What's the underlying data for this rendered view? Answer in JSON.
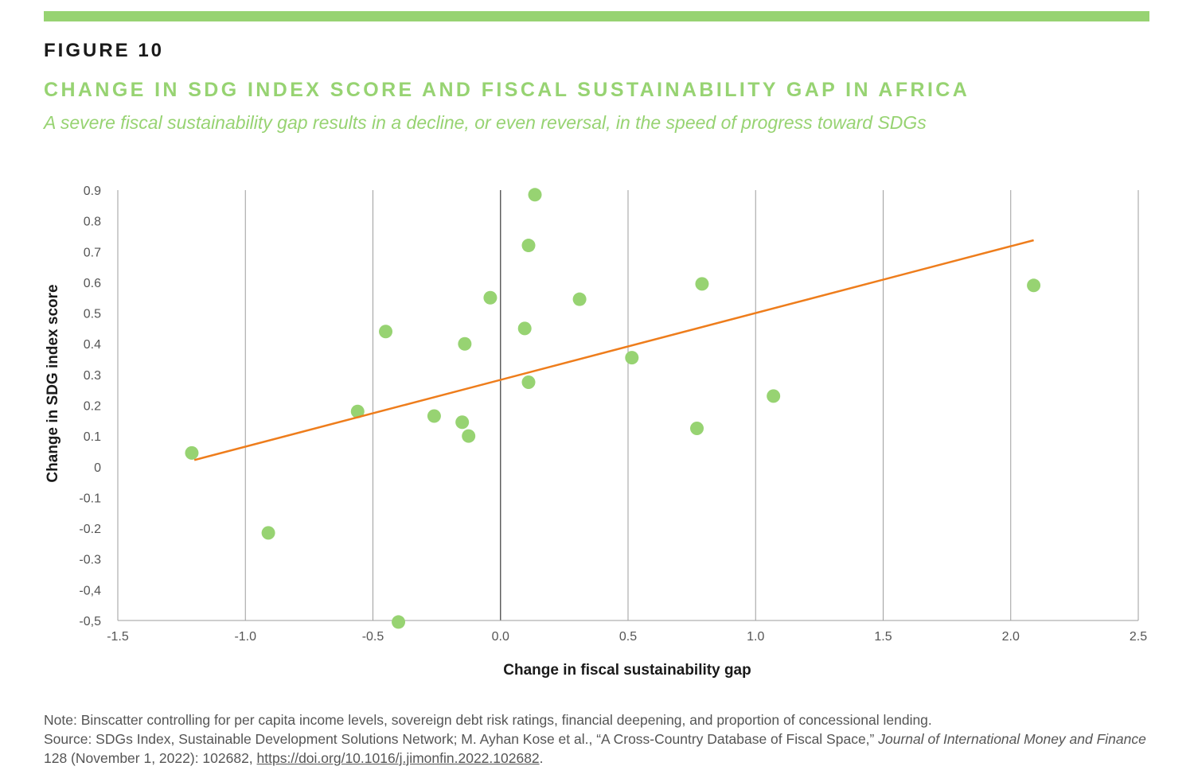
{
  "header": {
    "figure_label": "FIGURE 10",
    "title": "CHANGE IN SDG INDEX SCORE AND FISCAL SUSTAINABILITY GAP IN AFRICA",
    "subtitle": "A severe fiscal sustainability gap results in a decline, or even reversal, in the speed of progress toward SDGs"
  },
  "colors": {
    "accent": "#97d372",
    "trendline": "#ee7d1c",
    "gridline": "#9e9e9e",
    "zero_line": "#555555"
  },
  "chart_data": {
    "type": "scatter",
    "xlabel": "Change in fiscal sustainability gap",
    "ylabel": "Change in SDG index score",
    "xlim": [
      -1.5,
      2.5
    ],
    "ylim": [
      -0.5,
      0.9
    ],
    "x_ticks": [
      -1.5,
      -1.0,
      -0.5,
      0.0,
      0.5,
      1.0,
      1.5,
      2.0,
      2.5
    ],
    "x_tick_labels": [
      "-1.5",
      "-1.0",
      "-0.5",
      "0.0",
      "0.5",
      "1.0",
      "1.5",
      "2.0",
      "2.5"
    ],
    "y_ticks": [
      0.9,
      0.8,
      0.7,
      0.6,
      0.5,
      0.4,
      0.3,
      0.2,
      0.1,
      0,
      -0.1,
      -0.2,
      -0.3,
      -0.4,
      -0.5
    ],
    "y_tick_labels": [
      "0.9",
      "0.8",
      "0.7",
      "0.6",
      "0.5",
      "0.4",
      "0.3",
      "0.2",
      "0.1",
      "0",
      "-0.1",
      "-0.2",
      "-0.3",
      "-0,4",
      "-0,5"
    ],
    "grid": "vertical",
    "points": [
      {
        "x": -1.21,
        "y": 0.045
      },
      {
        "x": -0.91,
        "y": -0.215
      },
      {
        "x": -0.56,
        "y": 0.18
      },
      {
        "x": -0.45,
        "y": 0.44
      },
      {
        "x": -0.4,
        "y": -0.505
      },
      {
        "x": -0.26,
        "y": 0.165
      },
      {
        "x": -0.15,
        "y": 0.145
      },
      {
        "x": -0.14,
        "y": 0.4
      },
      {
        "x": -0.125,
        "y": 0.1
      },
      {
        "x": -0.04,
        "y": 0.55
      },
      {
        "x": 0.095,
        "y": 0.45
      },
      {
        "x": 0.11,
        "y": 0.275
      },
      {
        "x": 0.11,
        "y": 0.72
      },
      {
        "x": 0.135,
        "y": 0.885
      },
      {
        "x": 0.31,
        "y": 0.545
      },
      {
        "x": 0.515,
        "y": 0.355
      },
      {
        "x": 0.77,
        "y": 0.125
      },
      {
        "x": 0.79,
        "y": 0.595
      },
      {
        "x": 1.07,
        "y": 0.23
      },
      {
        "x": 2.09,
        "y": 0.59
      }
    ],
    "trendline": {
      "x": [
        -1.2,
        2.09
      ],
      "y": [
        0.022,
        0.737
      ]
    }
  },
  "notes": {
    "note": "Note: Binscatter controlling for per capita income levels, sovereign debt risk ratings, financial deepening, and proportion of concessional lending.",
    "source_prefix": "Source: SDGs Index, Sustainable Development Solutions Network; M. Ayhan Kose et al., “A Cross-Country Database of Fiscal Space,”",
    "journal": "Journal of International Money and Finance",
    "source_detail": "128 (November 1, 2022): 102682,",
    "doi": "https://doi.org/10.1016/j.jimonfin.2022.102682",
    "end": "."
  }
}
